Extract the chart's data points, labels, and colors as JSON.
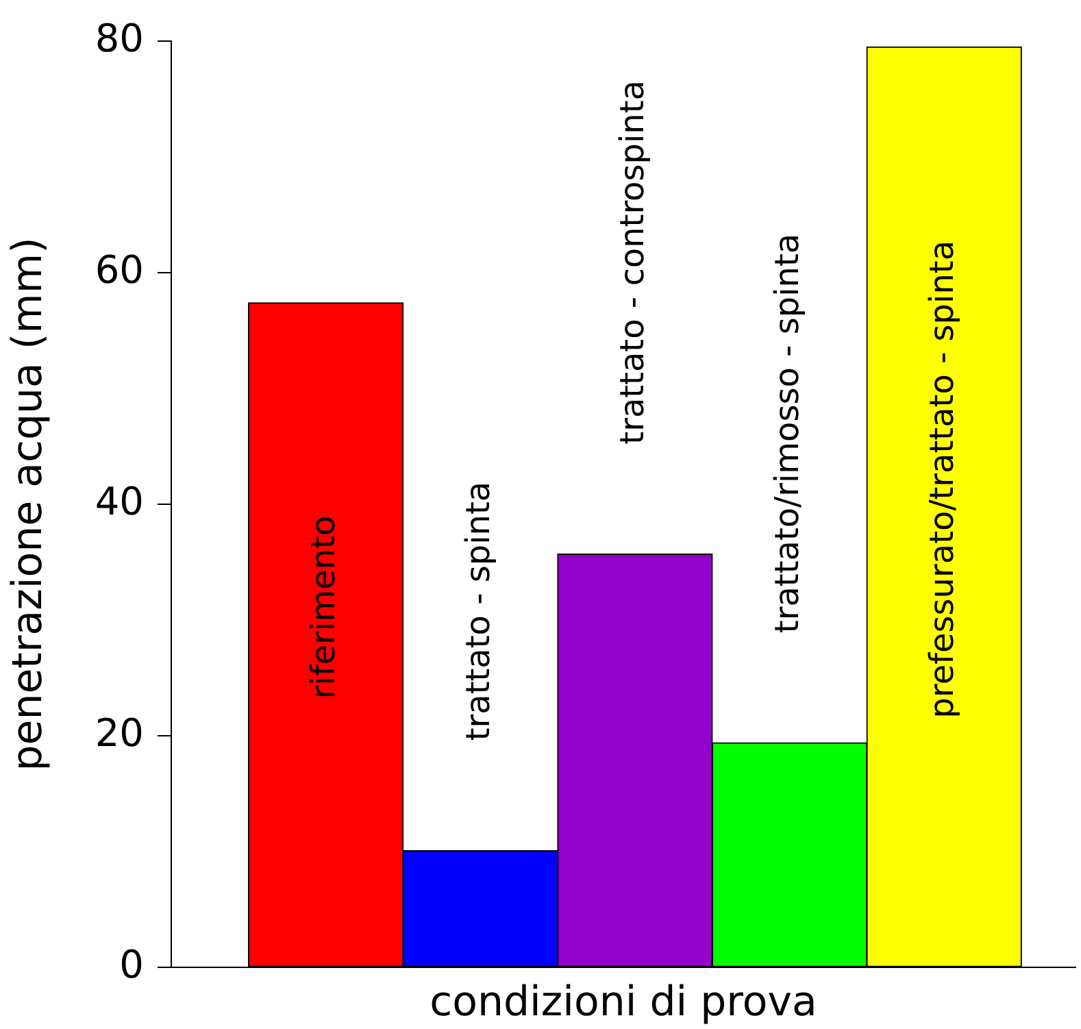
{
  "chart_data": {
    "type": "bar",
    "xlabel": "condizioni di prova",
    "ylabel": "penetrazione acqua (mm)",
    "categories": [
      "riferimento",
      "trattato - spinta",
      "trattato - controspinta",
      "trattato/rimosso - spinta",
      "prefessurato/trattato - spinta"
    ],
    "values": [
      57.4,
      10.1,
      35.7,
      19.4,
      79.5
    ],
    "colors": [
      "#ff0000",
      "#0000ff",
      "#9400cc",
      "#00ff00",
      "#ffff00"
    ],
    "ylim": [
      0,
      80
    ],
    "yticks": [
      0,
      20,
      40,
      60,
      80
    ],
    "grid": false,
    "legend": false
  }
}
